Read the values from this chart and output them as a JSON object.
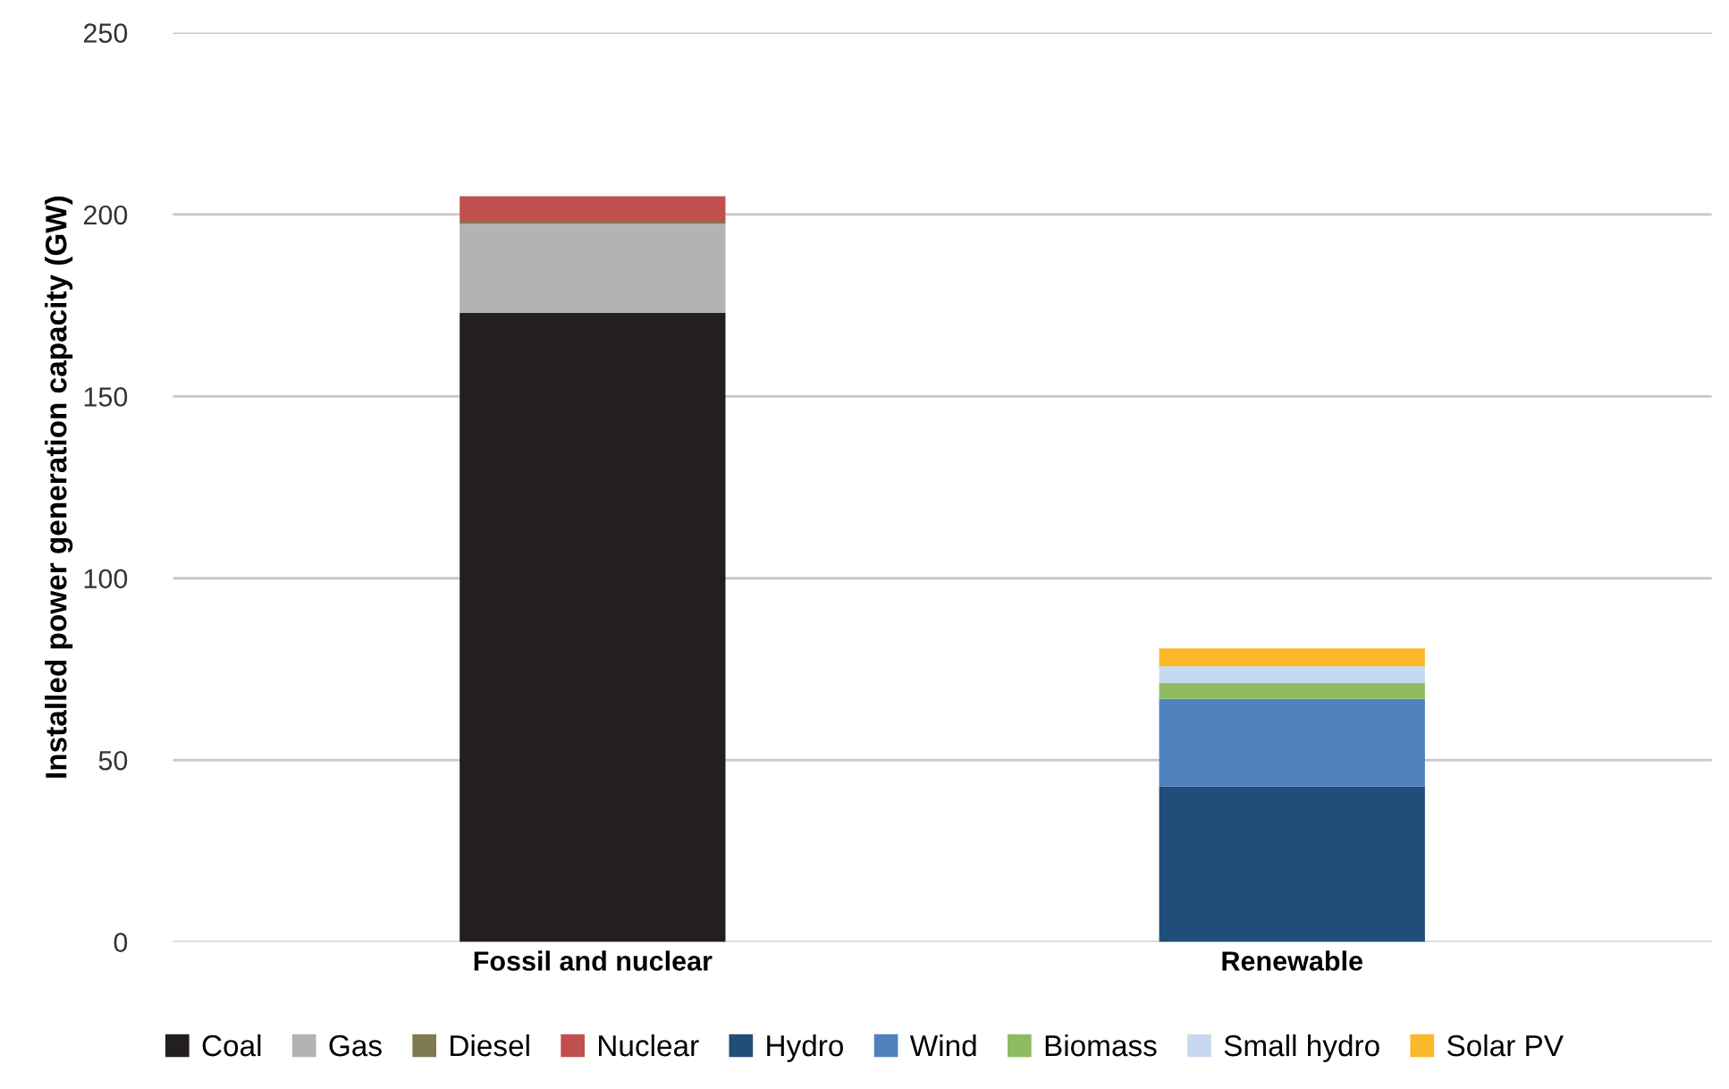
{
  "chart_data": {
    "type": "bar",
    "stacked": true,
    "ylabel": "Installed power generation capacity (GW)",
    "categories": [
      "Fossil and nuclear",
      "Renewable"
    ],
    "ylim": [
      0,
      250
    ],
    "yticks": [
      0,
      50,
      100,
      150,
      200,
      250
    ],
    "grid": "y",
    "legend": "bottom",
    "series": [
      {
        "name": "Coal",
        "color": "#231f20",
        "values": [
          173,
          null
        ]
      },
      {
        "name": "Gas",
        "color": "#b3b3b3",
        "values": [
          24.5,
          null
        ]
      },
      {
        "name": "Diesel",
        "color": "#7f7a50",
        "values": [
          0.5,
          null
        ]
      },
      {
        "name": "Nuclear",
        "color": "#c0504d",
        "values": [
          7,
          null
        ]
      },
      {
        "name": "Hydro",
        "color": "#1f4e79",
        "values": [
          null,
          42.7
        ]
      },
      {
        "name": "Wind",
        "color": "#4f81bd",
        "values": [
          null,
          24.1
        ]
      },
      {
        "name": "Biomass",
        "color": "#8fbc63",
        "values": [
          null,
          4.4
        ]
      },
      {
        "name": "Small hydro",
        "color": "#c6d9ee",
        "values": [
          null,
          4.6
        ]
      },
      {
        "name": "Solar PV",
        "color": "#fbb829",
        "values": [
          null,
          4.9
        ]
      }
    ]
  }
}
